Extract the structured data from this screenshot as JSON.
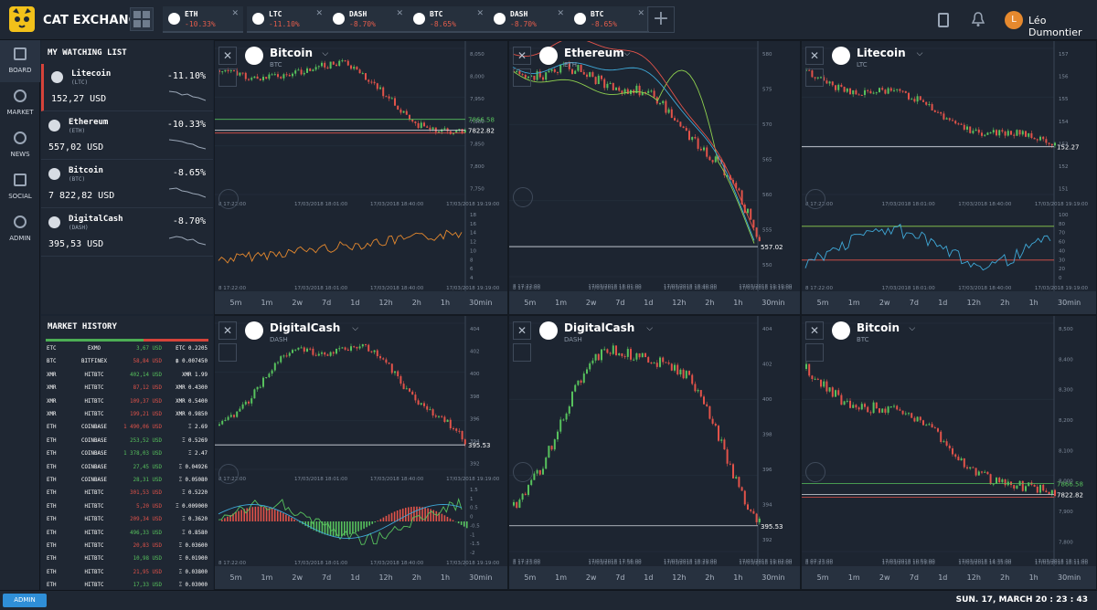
{
  "app": {
    "brand": "CAT EXCHANGE"
  },
  "tickers": [
    {
      "symbol": "ETH",
      "change": "-10.33%"
    },
    {
      "symbol": "LTC",
      "change": "-11.10%"
    },
    {
      "symbol": "DASH",
      "change": "-8.70%"
    },
    {
      "symbol": "BTC",
      "change": "-8.65%"
    },
    {
      "symbol": "DASH",
      "change": "-8.70%"
    },
    {
      "symbol": "BTC",
      "change": "-8.65%"
    }
  ],
  "user": {
    "name": "Léo Dumontier",
    "initial": "L"
  },
  "nav": [
    {
      "label": "BOARD",
      "icon": "board-icon"
    },
    {
      "label": "MARKET",
      "icon": "market-icon"
    },
    {
      "label": "NEWS",
      "icon": "news-icon"
    },
    {
      "label": "SOCIAL",
      "icon": "social-icon"
    },
    {
      "label": "ADMIN",
      "icon": "admin-icon"
    }
  ],
  "watchlist": {
    "title": "MY WATCHING LIST",
    "items": [
      {
        "name": "Litecoin",
        "symbol": "(LTC)",
        "price": "152,27 USD",
        "change": "-11.10%"
      },
      {
        "name": "Ethereum",
        "symbol": "(ETH)",
        "price": "557,02 USD",
        "change": "-10.33%"
      },
      {
        "name": "Bitcoin",
        "symbol": "(BTC)",
        "price": "7 822,82 USD",
        "change": "-8.65%"
      },
      {
        "name": "DigitalCash",
        "symbol": "(DASH)",
        "price": "395,53 USD",
        "change": "-8.70%"
      }
    ]
  },
  "history": {
    "title": "MARKET HISTORY",
    "rows": [
      [
        "ETC",
        "EXMO",
        "3,67 USD",
        "ETC 0.2205",
        "g"
      ],
      [
        "BTC",
        "BITFINEX",
        "58,84 USD",
        "฿ 0.007450",
        "r"
      ],
      [
        "XMR",
        "HITBTC",
        "402,14 USD",
        "XMR 1.99",
        "g"
      ],
      [
        "XMR",
        "HITBTC",
        "87,12 USD",
        "XMR 0.4300",
        "r"
      ],
      [
        "XMR",
        "HITBTC",
        "109,37 USD",
        "XMR 0.5400",
        "r"
      ],
      [
        "XMR",
        "HITBTC",
        "199,21 USD",
        "XMR 0.9850",
        "r"
      ],
      [
        "ETH",
        "COINBASE",
        "1 490,06 USD",
        "Ξ 2.69",
        "r"
      ],
      [
        "ETH",
        "COINBASE",
        "253,52 USD",
        "Ξ 0.5269",
        "g"
      ],
      [
        "ETH",
        "COINBASE",
        "1 378,03 USD",
        "Ξ 2.47",
        "g"
      ],
      [
        "ETH",
        "COINBASE",
        "27,45 USD",
        "Ξ 0.04926",
        "g"
      ],
      [
        "ETH",
        "COINBASE",
        "28,31 USD",
        "Ξ 0.05080",
        "g"
      ],
      [
        "ETH",
        "HITBTC",
        "301,53 USD",
        "Ξ 0.5220",
        "r"
      ],
      [
        "ETH",
        "HITBTC",
        "5,20 USD",
        "Ξ 0.009000",
        "r"
      ],
      [
        "ETH",
        "HITBTC",
        "209,34 USD",
        "Ξ 0.3620",
        "r"
      ],
      [
        "ETH",
        "HITBTC",
        "496,33 USD",
        "Ξ 0.8580",
        "g"
      ],
      [
        "ETH",
        "HITBTC",
        "20,83 USD",
        "Ξ 0.03600",
        "r"
      ],
      [
        "ETH",
        "HITBTC",
        "10,98 USD",
        "Ξ 0.01900",
        "g"
      ],
      [
        "ETH",
        "HITBTC",
        "21,95 USD",
        "Ξ 0.03800",
        "r"
      ],
      [
        "ETH",
        "HITBTC",
        "17,33 USD",
        "Ξ 0.03000",
        "g"
      ]
    ]
  },
  "timeframes": [
    "5m",
    "1m",
    "2w",
    "7d",
    "1d",
    "12h",
    "2h",
    "1h",
    "30min"
  ],
  "panels": [
    {
      "title": "Bitcoin",
      "ticker": "BTC",
      "price_label": "7822.82",
      "green_label": "7866.58",
      "yticks": [
        "8,050",
        "8,000",
        "7,950",
        "7,900",
        "7,850",
        "7,800",
        "7,750"
      ],
      "dates": [
        "8 17:22:00",
        "17/03/2018 18:01:00",
        "17/03/2018 18:40:00",
        "17/03/2018 19:19:00"
      ],
      "ind_ticks": [
        "18",
        "16",
        "14",
        "12",
        "10",
        "8",
        "6",
        "4"
      ]
    },
    {
      "title": "Ethereum",
      "ticker": "ETH",
      "price_label": "557.02",
      "yticks": [
        "580",
        "575",
        "570",
        "565",
        "560",
        "555",
        "550"
      ],
      "dates": [
        "8 17:22:00",
        "17/03/2018 18:01:00",
        "17/03/2018 18:40:00",
        "17/03/2018 19:19:00"
      ]
    },
    {
      "title": "Litecoin",
      "ticker": "LTC",
      "price_label": "152.27",
      "yticks": [
        "157",
        "156",
        "155",
        "154",
        "153",
        "152",
        "151"
      ],
      "dates": [
        "8 17:22:00",
        "17/03/2018 18:01:00",
        "17/03/2018 18:40:00",
        "17/03/2018 19:19:00"
      ],
      "ind_ticks": [
        "100",
        "80",
        "70",
        "60",
        "40",
        "30",
        "20",
        "0"
      ]
    },
    {
      "title": "DigitalCash",
      "ticker": "DASH",
      "price_label": "395.53",
      "yticks": [
        "404",
        "402",
        "400",
        "398",
        "396",
        "394",
        "392"
      ],
      "dates": [
        "8 17:22:00",
        "17/03/2018 18:01:00",
        "17/03/2018 18:40:00",
        "17/03/2018 19:19:00"
      ],
      "ind_ticks": [
        "1.5",
        "1",
        "0.5",
        "0",
        "-0.5",
        "-1",
        "-1.5",
        "-2"
      ]
    },
    {
      "title": "DigitalCash",
      "ticker": "DASH",
      "price_label": "395.53",
      "yticks": [
        "404",
        "402",
        "400",
        "398",
        "396",
        "394",
        "392"
      ],
      "dates": [
        "8 17:23:00",
        "17/03/2018 17:56:00",
        "17/03/2018 18:29:00",
        "17/03/2018 19:02:00"
      ]
    },
    {
      "title": "Bitcoin",
      "ticker": "BTC",
      "price_label": "7822.82",
      "green_label": "7866.58",
      "yticks": [
        "8,500",
        "8,400",
        "8,300",
        "8,200",
        "8,100",
        "8,000",
        "7,900",
        "7,800"
      ],
      "dates": [
        "8 07:23:00",
        "17/03/2018 10:59:00",
        "17/03/2018 14:35:00",
        "17/03/2018 18:11:00"
      ]
    }
  ],
  "status": {
    "admin": "ADMIN",
    "clock": "SUN. 17, MARCH 20 : 23 : 43"
  },
  "colors": {
    "accent": "#e6892e",
    "up": "#57c25d",
    "down": "#e2534a",
    "background": "#1b2431"
  }
}
